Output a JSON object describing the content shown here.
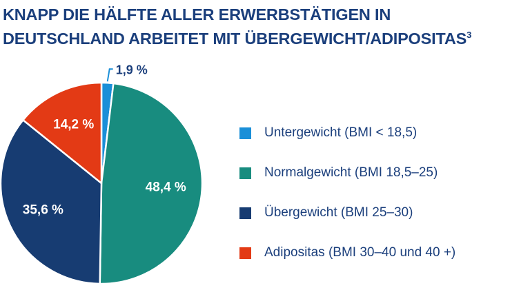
{
  "title": {
    "line1": "KNAPP DIE HÄLFTE ALLER ERWERBSTÄTIGEN IN",
    "line2": "DEUTSCHLAND ARBEITET MIT ÜBERGEWICHT/ADIPOSITAS",
    "footnote": "3"
  },
  "chart_data": {
    "type": "pie",
    "title": "KNAPP DIE HÄLFTE ALLER ERWERBSTÄTIGEN IN DEUTSCHLAND ARBEITET MIT ÜBERGEWICHT/ADIPOSITAS³",
    "legend_placement": "right",
    "slices": [
      {
        "key": "untergewicht",
        "label": "Untergewicht (BMI < 18,5)",
        "value": 1.9,
        "value_label": "1,9 %",
        "color": "#1a8fd8",
        "label_placement": "outside"
      },
      {
        "key": "normalgewicht",
        "label": "Normalgewicht (BMI 18,5–25)",
        "value": 48.4,
        "value_label": "48,4 %",
        "color": "#188c7f",
        "label_placement": "inside"
      },
      {
        "key": "uebergewicht",
        "label": "Übergewicht (BMI 25–30)",
        "value": 35.6,
        "value_label": "35,6 %",
        "color": "#173c72",
        "label_placement": "inside"
      },
      {
        "key": "adipositas",
        "label": "Adipositas (BMI 30–40 und 40 +)",
        "value": 14.2,
        "value_label": "14,2 %",
        "color": "#e33a15",
        "label_placement": "inside"
      }
    ]
  }
}
